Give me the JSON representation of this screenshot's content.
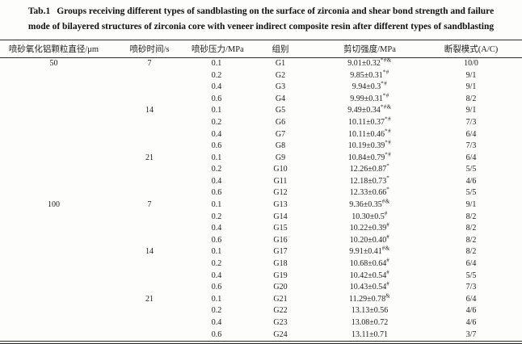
{
  "caption": {
    "tag": "Tab.1",
    "line1": "Groups receiving different types of sandblasting on the surface of zirconia and shear bond strength and failure",
    "line2": "mode of bilayered structures of zirconia core with veneer indirect composite resin after different types of sandblasting"
  },
  "table": {
    "headers": [
      "喷砂氧化铝颗粒直径/μm",
      "喷砂时间/s",
      "喷砂压力/MPa",
      "组别",
      "剪切强度/MPa",
      "断裂模式(A/C)"
    ],
    "rows": [
      {
        "diameter": "50",
        "time": "7",
        "pressure": "0.1",
        "group": "G1",
        "strength": "9.01±0.32",
        "sup": "*#&",
        "failure": "10/0"
      },
      {
        "diameter": "",
        "time": "",
        "pressure": "0.2",
        "group": "G2",
        "strength": "9.85±0.31",
        "sup": "*#",
        "failure": "9/1"
      },
      {
        "diameter": "",
        "time": "",
        "pressure": "0.4",
        "group": "G3",
        "strength": "9.94±0.3",
        "sup": "*#",
        "failure": "9/1"
      },
      {
        "diameter": "",
        "time": "",
        "pressure": "0.6",
        "group": "G4",
        "strength": "9.99±0.31",
        "sup": "*#",
        "failure": "8/2"
      },
      {
        "diameter": "",
        "time": "14",
        "pressure": "0.1",
        "group": "G5",
        "strength": "9.49±0.34",
        "sup": "*#&",
        "failure": "9/1"
      },
      {
        "diameter": "",
        "time": "",
        "pressure": "0.2",
        "group": "G6",
        "strength": "10.11±0.37",
        "sup": "*#",
        "failure": "7/3"
      },
      {
        "diameter": "",
        "time": "",
        "pressure": "0.4",
        "group": "G7",
        "strength": "10.11±0.46",
        "sup": "*#",
        "failure": "6/4"
      },
      {
        "diameter": "",
        "time": "",
        "pressure": "0.6",
        "group": "G8",
        "strength": "10.19±0.39",
        "sup": "*#",
        "failure": "7/3"
      },
      {
        "diameter": "",
        "time": "21",
        "pressure": "0.1",
        "group": "G9",
        "strength": "10.84±0.79",
        "sup": "*#",
        "failure": "6/4"
      },
      {
        "diameter": "",
        "time": "",
        "pressure": "0.2",
        "group": "G10",
        "strength": "12.26±0.87",
        "sup": "*",
        "failure": "5/5"
      },
      {
        "diameter": "",
        "time": "",
        "pressure": "0.4",
        "group": "G11",
        "strength": "12.18±0.73",
        "sup": "*",
        "failure": "4/6"
      },
      {
        "diameter": "",
        "time": "",
        "pressure": "0.6",
        "group": "G12",
        "strength": "12.33±0.66",
        "sup": "*",
        "failure": "5/5"
      },
      {
        "diameter": "100",
        "time": "7",
        "pressure": "0.1",
        "group": "G13",
        "strength": "9.36±0.35",
        "sup": "#&",
        "failure": "9/1"
      },
      {
        "diameter": "",
        "time": "",
        "pressure": "0.2",
        "group": "G14",
        "strength": "10.30±0.5",
        "sup": "#",
        "failure": "8/2"
      },
      {
        "diameter": "",
        "time": "",
        "pressure": "0.4",
        "group": "G15",
        "strength": "10.22±0.39",
        "sup": "#",
        "failure": "8/2"
      },
      {
        "diameter": "",
        "time": "",
        "pressure": "0.6",
        "group": "G16",
        "strength": "10.20±0.40",
        "sup": "#",
        "failure": "8/2"
      },
      {
        "diameter": "",
        "time": "14",
        "pressure": "0.1",
        "group": "G17",
        "strength": "9.91±0.41",
        "sup": "#&",
        "failure": "8/2"
      },
      {
        "diameter": "",
        "time": "",
        "pressure": "0.2",
        "group": "G18",
        "strength": "10.68±0.64",
        "sup": "#",
        "failure": "6/4"
      },
      {
        "diameter": "",
        "time": "",
        "pressure": "0.4",
        "group": "G19",
        "strength": "10.42±0.54",
        "sup": "#",
        "failure": "5/5"
      },
      {
        "diameter": "",
        "time": "",
        "pressure": "0.6",
        "group": "G20",
        "strength": "10.43±0.54",
        "sup": "#",
        "failure": "7/3"
      },
      {
        "diameter": "",
        "time": "21",
        "pressure": "0.1",
        "group": "G21",
        "strength": "11.29±0.78",
        "sup": "&",
        "failure": "6/4"
      },
      {
        "diameter": "",
        "time": "",
        "pressure": "0.2",
        "group": "G22",
        "strength": "13.13±0.56",
        "sup": "",
        "failure": "4/6"
      },
      {
        "diameter": "",
        "time": "",
        "pressure": "0.4",
        "group": "G23",
        "strength": "13.08±0.72",
        "sup": "",
        "failure": "4/6"
      },
      {
        "diameter": "",
        "time": "",
        "pressure": "0.6",
        "group": "G24",
        "strength": "13.11±0.71",
        "sup": "",
        "failure": "3/7"
      }
    ]
  }
}
